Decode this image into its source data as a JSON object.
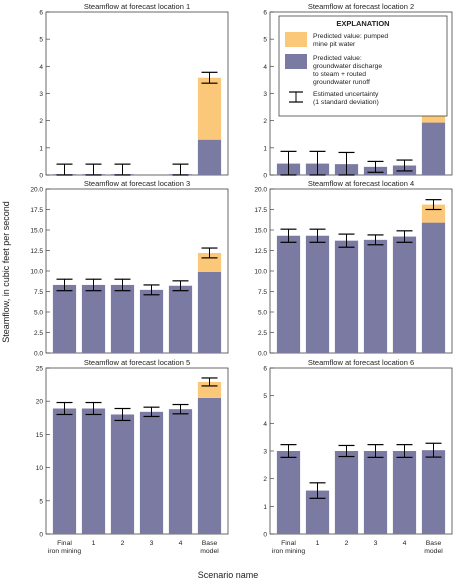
{
  "figure": {
    "ylabel": "Steamflow, in cubic feet per second",
    "xlabel": "Scenario name",
    "colors": {
      "groundwater": "#7b7aa3",
      "pumped": "#fbc87a",
      "frame": "#444444"
    }
  },
  "legend": {
    "title": "EXPLANATION",
    "pumped": [
      "Predicted value: pumped",
      "mine pit water"
    ],
    "groundwater": [
      "Predicted value:",
      "groundwater discharge",
      "to steam + routed",
      "groundwater runoff"
    ],
    "uncertainty": [
      "Estimated uncertainty",
      "(1 standard deviation)"
    ]
  },
  "chart_data": [
    {
      "type": "bar",
      "stacked": true,
      "title": "Steamflow at forecast location 1",
      "categories": [
        "Final iron mining",
        "1",
        "2",
        "3",
        "4",
        "Base model"
      ],
      "categories_shown": false,
      "ylim": [
        0,
        6
      ],
      "yticks": [
        0,
        1,
        2,
        3,
        4,
        5,
        6
      ],
      "tick_decimals": 0,
      "series": [
        {
          "name": "Predicted value: groundwater discharge to steam + routed groundwater runoff",
          "values": [
            0.03,
            0.03,
            0.03,
            0.0,
            0.03,
            1.3
          ]
        },
        {
          "name": "Predicted value: pumped mine pit water",
          "values": [
            0,
            0,
            0,
            0,
            0,
            2.28
          ]
        }
      ],
      "uncertainty": [
        0.37,
        0.37,
        0.37,
        0.0,
        0.37,
        0.2
      ]
    },
    {
      "type": "bar",
      "stacked": true,
      "title": "Steamflow at forecast location 2",
      "categories": [
        "Final iron mining",
        "1",
        "2",
        "3",
        "4",
        "Base model"
      ],
      "categories_shown": false,
      "ylim": [
        0,
        6
      ],
      "yticks": [
        0,
        1,
        2,
        3,
        4,
        5,
        6
      ],
      "tick_decimals": 0,
      "series": [
        {
          "name": "Predicted value: groundwater discharge to steam + routed groundwater runoff",
          "values": [
            0.42,
            0.42,
            0.4,
            0.3,
            0.35,
            1.93
          ]
        },
        {
          "name": "Predicted value: pumped mine pit water",
          "values": [
            0,
            0,
            0,
            0,
            0,
            2.3
          ]
        }
      ],
      "uncertainty": [
        0.45,
        0.45,
        0.43,
        0.2,
        0.2,
        0.2
      ]
    },
    {
      "type": "bar",
      "stacked": true,
      "title": "Steamflow at forecast location 3",
      "categories": [
        "Final iron mining",
        "1",
        "2",
        "3",
        "4",
        "Base model"
      ],
      "categories_shown": false,
      "ylim": [
        0,
        20
      ],
      "yticks": [
        0,
        2.5,
        5,
        7.5,
        10,
        12.5,
        15,
        17.5,
        20
      ],
      "tick_decimals": 1,
      "series": [
        {
          "name": "Predicted value: groundwater discharge to steam + routed groundwater runoff",
          "values": [
            8.3,
            8.3,
            8.3,
            7.7,
            8.2,
            9.9
          ]
        },
        {
          "name": "Predicted value: pumped mine pit water",
          "values": [
            0,
            0,
            0,
            0,
            0,
            2.3
          ]
        }
      ],
      "uncertainty": [
        0.7,
        0.7,
        0.7,
        0.6,
        0.6,
        0.6
      ]
    },
    {
      "type": "bar",
      "stacked": true,
      "title": "Steamflow at forecast location 4",
      "categories": [
        "Final iron mining",
        "1",
        "2",
        "3",
        "4",
        "Base model"
      ],
      "categories_shown": false,
      "ylim": [
        0,
        20
      ],
      "yticks": [
        0,
        2.5,
        5,
        7.5,
        10,
        12.5,
        15,
        17.5,
        20
      ],
      "tick_decimals": 1,
      "series": [
        {
          "name": "Predicted value: groundwater discharge to steam + routed groundwater runoff",
          "values": [
            14.3,
            14.3,
            13.7,
            13.8,
            14.2,
            15.9
          ]
        },
        {
          "name": "Predicted value: pumped mine pit water",
          "values": [
            0,
            0,
            0,
            0,
            0,
            2.2
          ]
        }
      ],
      "uncertainty": [
        0.8,
        0.8,
        0.8,
        0.6,
        0.7,
        0.6
      ]
    },
    {
      "type": "bar",
      "stacked": true,
      "title": "Steamflow at forecast location 5",
      "categories": [
        "Final iron mining",
        "1",
        "2",
        "3",
        "4",
        "Base model"
      ],
      "categories_shown": true,
      "ylim": [
        0,
        25
      ],
      "yticks": [
        0,
        5,
        10,
        15,
        20,
        25
      ],
      "tick_decimals": 0,
      "series": [
        {
          "name": "Predicted value: groundwater discharge to steam + routed groundwater runoff",
          "values": [
            18.9,
            18.9,
            18.0,
            18.4,
            18.8,
            20.5
          ]
        },
        {
          "name": "Predicted value: pumped mine pit water",
          "values": [
            0,
            0,
            0,
            0,
            0,
            2.4
          ]
        }
      ],
      "uncertainty": [
        0.9,
        0.9,
        0.9,
        0.7,
        0.7,
        0.6
      ]
    },
    {
      "type": "bar",
      "stacked": true,
      "title": "Steamflow at forecast location 6",
      "categories": [
        "Final iron mining",
        "1",
        "2",
        "3",
        "4",
        "Base model"
      ],
      "categories_shown": true,
      "ylim": [
        0,
        6
      ],
      "yticks": [
        0,
        1,
        2,
        3,
        4,
        5,
        6
      ],
      "tick_decimals": 0,
      "series": [
        {
          "name": "Predicted value: groundwater discharge to steam + routed groundwater runoff",
          "values": [
            3.0,
            1.57,
            3.0,
            3.0,
            3.0,
            3.03
          ]
        },
        {
          "name": "Predicted value: pumped mine pit water",
          "values": [
            0,
            0,
            0,
            0,
            0,
            0
          ]
        }
      ],
      "uncertainty": [
        0.23,
        0.28,
        0.2,
        0.23,
        0.23,
        0.25
      ]
    }
  ]
}
